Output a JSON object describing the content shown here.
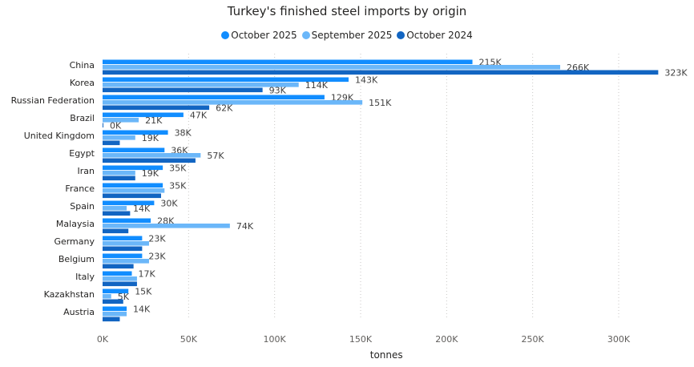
{
  "chart_data": {
    "type": "bar",
    "orientation": "horizontal",
    "title": "Turkey's finished steel imports by origin",
    "xlabel": "tonnes",
    "ylabel": "",
    "xlim": [
      0,
      330000
    ],
    "x_ticks": [
      0,
      50000,
      100000,
      150000,
      200000,
      250000,
      300000
    ],
    "x_tick_labels": [
      "0K",
      "50K",
      "100K",
      "150K",
      "200K",
      "250K",
      "300K"
    ],
    "grid": true,
    "legend_position": "top",
    "categories": [
      "China",
      "Korea",
      "Russian Federation",
      "Brazil",
      "United Kingdom",
      "Egypt",
      "Iran",
      "France",
      "Spain",
      "Malaysia",
      "Germany",
      "Belgium",
      "Italy",
      "Kazakhstan",
      "Austria"
    ],
    "series": [
      {
        "name": "October 2025",
        "color": "#118DFF",
        "values": [
          215000,
          143000,
          129000,
          47000,
          38000,
          36000,
          35000,
          35000,
          30000,
          28000,
          23000,
          23000,
          17000,
          15000,
          14000
        ],
        "labels": [
          "215K",
          "143K",
          "129K",
          "47K",
          "38K",
          "36K",
          "35K",
          "35K",
          "30K",
          "28K",
          "23K",
          "23K",
          "17K",
          "15K",
          "14K"
        ]
      },
      {
        "name": "September 2025",
        "color": "#6BB7F9",
        "values": [
          266000,
          114000,
          151000,
          21000,
          19000,
          57000,
          19000,
          36000,
          14000,
          74000,
          27000,
          27000,
          20000,
          5000,
          14000
        ],
        "labels": [
          "266K",
          "114K",
          "151K",
          "21K",
          "19K",
          "57K",
          "19K",
          "",
          "14K",
          "74K",
          "",
          "",
          "",
          "5K",
          ""
        ]
      },
      {
        "name": "October 2024",
        "color": "#1265C2",
        "values": [
          323000,
          93000,
          62000,
          0,
          10000,
          54000,
          19000,
          34000,
          16000,
          15000,
          23000,
          18000,
          20000,
          12000,
          10000
        ],
        "labels": [
          "323K",
          "93K",
          "62K",
          "0K",
          "",
          "",
          "",
          "",
          "",
          "",
          "",
          "",
          "",
          "",
          ""
        ]
      }
    ]
  }
}
